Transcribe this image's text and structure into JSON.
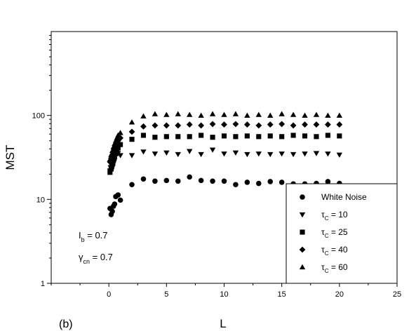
{
  "chart_data": {
    "type": "scatter",
    "title": "",
    "xlabel": "L",
    "ylabel": "MST",
    "xlim": [
      -5,
      25
    ],
    "ylim": [
      1,
      1000
    ],
    "yscale": "log",
    "xticks": [
      0,
      5,
      10,
      15,
      20,
      25
    ],
    "xtick_labels": [
      "0",
      "5",
      "10",
      "15",
      "20",
      "25"
    ],
    "yticks": [
      1,
      10,
      100
    ],
    "ytick_labels": [
      "1",
      "10",
      "100"
    ],
    "grid": false,
    "legend_position": "bottom-right",
    "panel_label": "(b)",
    "annotations": [
      {
        "main": "I",
        "sub": "b",
        "rest": " = 0.7"
      },
      {
        "main": "γ",
        "sub": "cn",
        "rest": " = 0.7"
      }
    ],
    "series": [
      {
        "name": "White Noise",
        "legend_prefix": "",
        "legend_sub": "",
        "legend_value": "White Noise",
        "marker": "circle",
        "x": [
          0.1,
          0.2,
          0.3,
          0.4,
          0.5,
          0.6,
          0.8,
          1.0,
          2.0,
          3.0,
          4.0,
          5.0,
          6.0,
          7.0,
          8.0,
          9.0,
          10.0,
          11.0,
          12.0,
          13.0,
          14.0,
          15.0,
          16.0,
          17.0,
          18.0,
          19.0,
          20.0
        ],
        "y": [
          7.8,
          6.6,
          7.2,
          8.3,
          8.8,
          10.8,
          11.3,
          9.8,
          15.0,
          17.5,
          16.5,
          16.8,
          16.5,
          18.5,
          16.8,
          16.5,
          16.5,
          15.0,
          16.0,
          15.5,
          16.3,
          16.0,
          15.3,
          15.3,
          15.5,
          16.3,
          15.5
        ]
      },
      {
        "name": "τc = 10",
        "legend_prefix": "τ",
        "legend_sub": "C",
        "legend_value": " = 10",
        "marker": "triangle-down",
        "x": [
          0.1,
          0.15,
          0.2,
          0.25,
          0.3,
          0.35,
          0.4,
          0.45,
          0.5,
          0.6,
          0.7,
          0.8,
          1.0,
          2.0,
          3.0,
          4.0,
          5.0,
          6.0,
          7.0,
          8.0,
          9.0,
          10.0,
          11.0,
          12.0,
          13.0,
          14.0,
          15.0,
          16.0,
          17.0,
          18.0,
          19.0,
          20.0
        ],
        "y": [
          22,
          24,
          26,
          27.5,
          29,
          30.5,
          31.5,
          32.5,
          33.5,
          34,
          35,
          35.5,
          33.5,
          33.5,
          37,
          35,
          36,
          34.5,
          37.5,
          34.5,
          39,
          35,
          36,
          34.5,
          35,
          34.5,
          35,
          34.5,
          35,
          35.5,
          35,
          34
        ]
      },
      {
        "name": "τc = 25",
        "legend_prefix": "τ",
        "legend_sub": "C",
        "legend_value": " = 25",
        "marker": "square",
        "x": [
          0.1,
          0.2,
          0.25,
          0.3,
          0.35,
          0.4,
          0.45,
          0.5,
          0.6,
          0.7,
          0.8,
          1.0,
          2.0,
          3.0,
          4.0,
          5.0,
          6.0,
          7.0,
          8.0,
          9.0,
          10.0,
          11.0,
          12.0,
          13.0,
          14.0,
          15.0,
          16.0,
          17.0,
          18.0,
          19.0,
          20.0
        ],
        "y": [
          21,
          23,
          24.5,
          26,
          27,
          29,
          30.5,
          32,
          35,
          38,
          41,
          45,
          52,
          58,
          55,
          56,
          56,
          56,
          58,
          55,
          57,
          56,
          57,
          56,
          57,
          56,
          58,
          57,
          56,
          58,
          57
        ]
      },
      {
        "name": "τc = 40",
        "legend_prefix": "τ",
        "legend_sub": "C",
        "legend_value": " = 40",
        "marker": "diamond",
        "x": [
          0.1,
          0.2,
          0.3,
          0.4,
          0.5,
          0.6,
          0.7,
          0.8,
          1.0,
          2.0,
          3.0,
          4.0,
          5.0,
          6.0,
          7.0,
          8.0,
          9.0,
          10.0,
          11.0,
          12.0,
          13.0,
          14.0,
          15.0,
          16.0,
          17.0,
          18.0,
          19.0,
          20.0
        ],
        "y": [
          28,
          31,
          34,
          37,
          40,
          43,
          46,
          50,
          54,
          64,
          74,
          76,
          76,
          76,
          78,
          76,
          79,
          78,
          79,
          78,
          76,
          78,
          79,
          76,
          78,
          78,
          78,
          78
        ]
      },
      {
        "name": "τc = 60",
        "legend_prefix": "τ",
        "legend_sub": "C",
        "legend_value": " = 60",
        "marker": "triangle-up",
        "x": [
          0.1,
          0.2,
          0.3,
          0.4,
          0.5,
          0.6,
          0.7,
          0.8,
          1.0,
          2.0,
          3.0,
          4.0,
          5.0,
          6.0,
          7.0,
          8.0,
          9.0,
          10.0,
          11.0,
          12.0,
          13.0,
          14.0,
          15.0,
          16.0,
          17.0,
          18.0,
          19.0,
          20.0
        ],
        "y": [
          30,
          34,
          38,
          42,
          46,
          50,
          54,
          58,
          62,
          83,
          98,
          104,
          102,
          104,
          102,
          100,
          104,
          102,
          104,
          100,
          102,
          100,
          104,
          102,
          100,
          102,
          100,
          100
        ]
      }
    ]
  }
}
